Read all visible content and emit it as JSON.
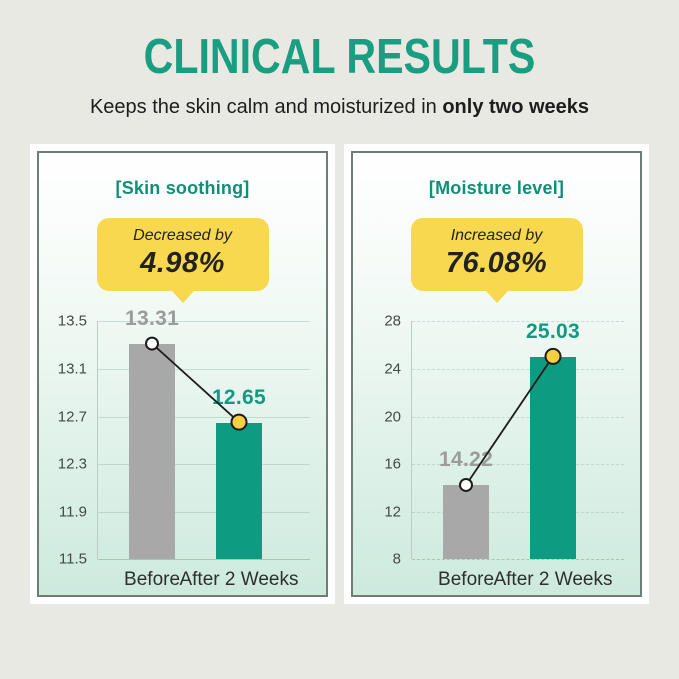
{
  "page": {
    "background": "#e9e9e4"
  },
  "header": {
    "title": "CLINICAL RESULTS",
    "subtitle_prefix": "Keeps the skin calm and moisturized in ",
    "subtitle_bold": "only two weeks"
  },
  "colors": {
    "page_bg": "#e9e9e4",
    "accent_teal": "#1a9e82",
    "chart_title_teal": "#0e9077",
    "bubble_yellow": "#f8d84e",
    "bubble_text": "#22221f",
    "panel_border": "#6e7d77",
    "panel_mint": "#cdeadd",
    "marker_yellow": "#f7cf43",
    "connector_line": "#1c1c1c"
  },
  "chart_data": [
    {
      "type": "bar",
      "title": "[Skin soothing]",
      "badge": {
        "line1": "Decreased by",
        "line2": "4.98%"
      },
      "categories": [
        "Before",
        "After 2 Weeks"
      ],
      "values": [
        13.31,
        12.65
      ],
      "value_labels": [
        "13.31",
        "12.65"
      ],
      "value_colors": [
        "#9b9b9b",
        "#0d9c82"
      ],
      "bar_colors": [
        "#a8a8a8",
        "#0d9c82"
      ],
      "yticks": [
        "13.5",
        "13.1",
        "12.7",
        "12.3",
        "11.9",
        "11.5"
      ],
      "ylim": [
        11.5,
        13.5
      ],
      "grid_style": "solid",
      "legend": false,
      "connector": true
    },
    {
      "type": "bar",
      "title": "[Moisture level]",
      "badge": {
        "line1": "Increased by",
        "line2": "76.08%"
      },
      "categories": [
        "Before",
        "After 2 Weeks"
      ],
      "values": [
        14.22,
        25.03
      ],
      "value_labels": [
        "14.22",
        "25.03"
      ],
      "value_colors": [
        "#9b9b9b",
        "#0d9c82"
      ],
      "bar_colors": [
        "#a8a8a8",
        "#0d9c82"
      ],
      "yticks": [
        "28",
        "24",
        "20",
        "16",
        "12",
        "8"
      ],
      "ylim": [
        8,
        28
      ],
      "grid_style": "dashed",
      "legend": false,
      "connector": true
    }
  ]
}
